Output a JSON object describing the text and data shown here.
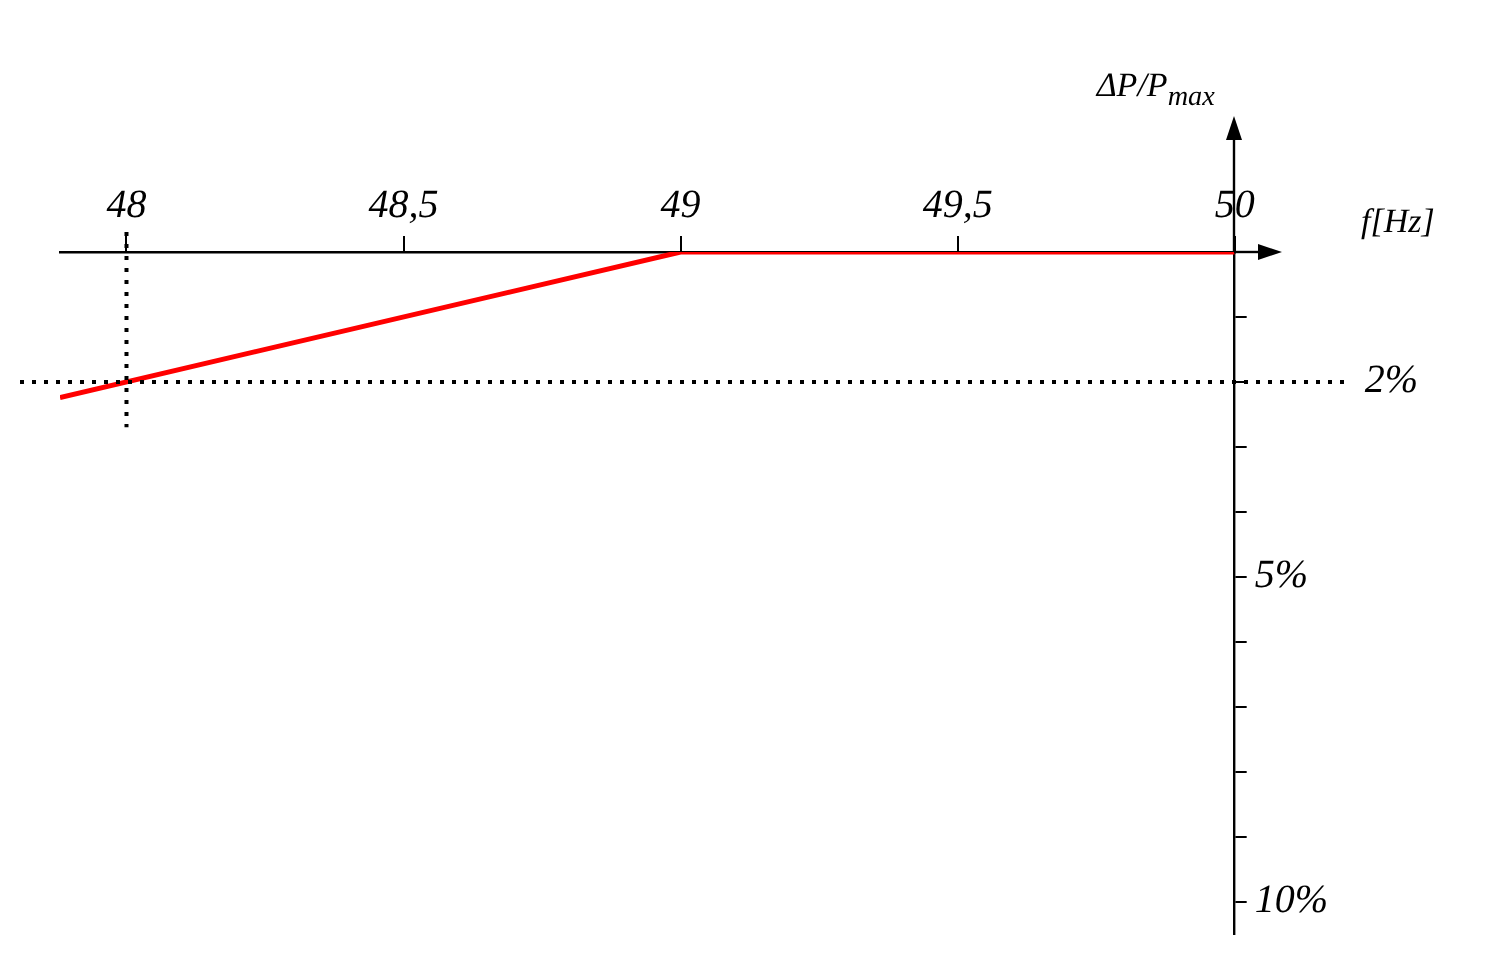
{
  "chart_data": {
    "type": "line",
    "xlabel": "f[Hz]",
    "ylabel": "ΔP/P$_{max}$",
    "x": [
      47.88,
      49,
      50
    ],
    "series": [
      {
        "color": "#ff0000",
        "values": [
          2.24,
          0,
          0
        ]
      }
    ],
    "xlim": [
      47.88,
      50.0
    ],
    "ylim": [
      10.5,
      0
    ],
    "xticks": [
      48,
      {
        "value": 48.5,
        "label": "48,5"
      },
      49,
      {
        "value": 49.5,
        "label": "49,5"
      },
      50
    ],
    "yticks": [
      {
        "value": 1,
        "label": null
      },
      {
        "value": 2,
        "label": null
      },
      {
        "value": 3,
        "label": null
      },
      {
        "value": 4,
        "label": null
      },
      {
        "value": 5,
        "label": "5%"
      },
      {
        "value": 6,
        "label": null
      },
      {
        "value": 7,
        "label": null
      },
      {
        "value": 8,
        "label": null
      },
      {
        "value": 9,
        "label": null
      },
      {
        "value": 10,
        "label": "10%"
      }
    ],
    "ref_lines": [
      {
        "axis": "y",
        "value": 2,
        "label": "2%",
        "line_style": "dotted",
        "color": "#000000"
      },
      {
        "axis": "x",
        "value": 48,
        "label": null,
        "line_style": "dotted",
        "color": "#000000"
      }
    ],
    "marker": "none",
    "line_style": "solid"
  }
}
